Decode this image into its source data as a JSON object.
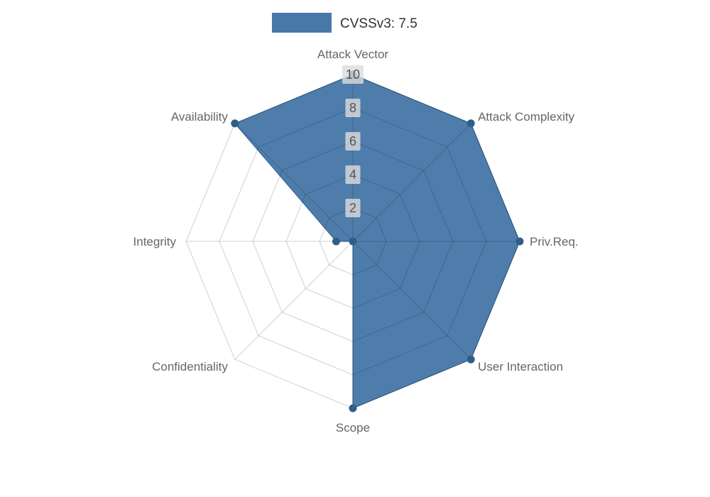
{
  "legend": {
    "label": "CVSSv3: 7.5"
  },
  "chart_data": {
    "type": "radar",
    "title": "CVSSv3: 7.5",
    "categories": [
      "Attack Vector",
      "Attack Complexity",
      "Priv.Req.",
      "User Interaction",
      "Scope",
      "Confidentiality",
      "Integrity",
      "Availability"
    ],
    "series": [
      {
        "name": "CVSSv3: 7.5",
        "color": "#4878a8",
        "values": [
          10,
          10,
          10,
          10,
          10,
          0,
          1,
          10
        ]
      }
    ],
    "ticks": [
      2,
      4,
      6,
      8,
      10
    ],
    "r_max": 10,
    "grid": true,
    "legend_position": "top-center",
    "direction": "clockwise",
    "start_axis": "top"
  },
  "style": {
    "series_color": "#4878a8",
    "dot_color": "#2d5f8d",
    "grid_color": "rgba(0,0,0,0.18)",
    "axis_label_color": "#666666",
    "tick_label_color": "#555555",
    "tick_box_color": "#dcdcdc",
    "legend_text_color": "#333333",
    "background_color": "#ffffff"
  }
}
